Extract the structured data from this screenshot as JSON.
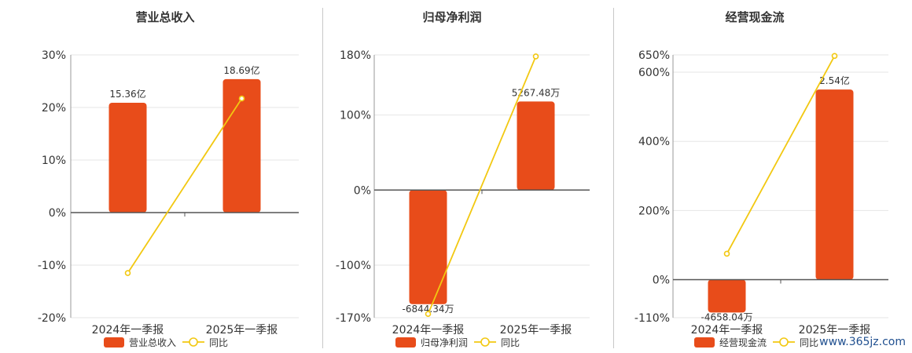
{
  "colors": {
    "bar": "#e84c1a",
    "line": "#f2c811",
    "axis": "#555555",
    "grid": "#e6e6e6",
    "text": "#333333"
  },
  "watermark": "www.365jz.com",
  "chart_data": [
    {
      "type": "bar",
      "title": "营业总收入",
      "categories": [
        "2024年一季报",
        "2025年一季报"
      ],
      "bar_series": {
        "name": "营业总收入",
        "values": [
          20.9,
          25.4
        ],
        "labels": [
          "15.36亿",
          "18.69亿"
        ]
      },
      "line_series": {
        "name": "同比",
        "values": [
          -11.5,
          21.7
        ]
      },
      "y_ticks": [
        30,
        20,
        10,
        0,
        -10,
        -20
      ],
      "y_tick_labels": [
        "30%",
        "20%",
        "10%",
        "0%",
        "-10%",
        "-20%"
      ],
      "ylim": [
        -20,
        30
      ],
      "grid": true,
      "legend_position": "bottom"
    },
    {
      "type": "bar",
      "title": "归母净利润",
      "categories": [
        "2024年一季报",
        "2025年一季报"
      ],
      "bar_series": {
        "name": "归母净利润",
        "values": [
          -152,
          118
        ],
        "labels": [
          "-6844.34万",
          "5267.48万"
        ]
      },
      "line_series": {
        "name": "同比",
        "values": [
          -165,
          178
        ]
      },
      "y_ticks": [
        180,
        100,
        0,
        -100,
        -170
      ],
      "y_tick_labels": [
        "180%",
        "100%",
        "0%",
        "-100%",
        "-170%"
      ],
      "ylim": [
        -170,
        180
      ],
      "grid": true,
      "legend_position": "bottom"
    },
    {
      "type": "bar",
      "title": "经营现金流",
      "categories": [
        "2024年一季报",
        "2025年一季报"
      ],
      "bar_series": {
        "name": "经营现金流",
        "values": [
          -95,
          550
        ],
        "labels": [
          "-4658.04万",
          "2.54亿"
        ]
      },
      "line_series": {
        "name": "同比",
        "values": [
          75,
          647
        ]
      },
      "y_ticks": [
        650,
        600,
        400,
        200,
        0,
        -110
      ],
      "y_tick_labels": [
        "650%",
        "600%",
        "400%",
        "200%",
        "0%",
        "-110%"
      ],
      "ylim": [
        -110,
        650
      ],
      "grid": true,
      "legend_position": "bottom"
    }
  ]
}
